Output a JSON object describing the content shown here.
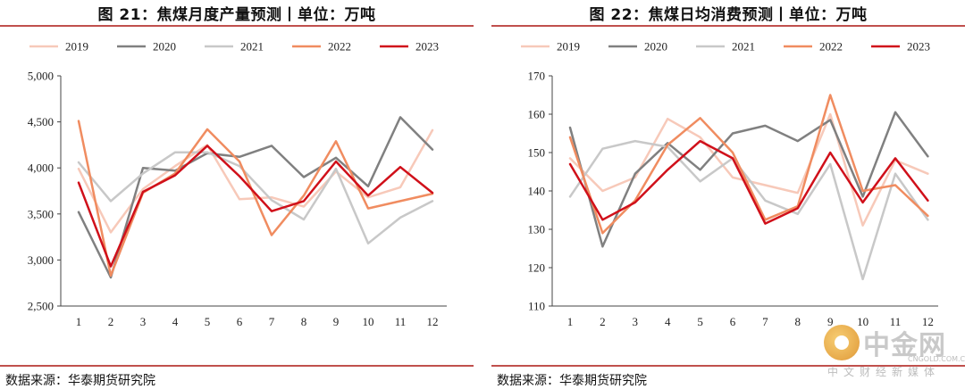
{
  "left": {
    "title": "图 21：焦煤月度产量预测丨单位：万吨",
    "source": "数据来源：华泰期货研究院"
  },
  "right": {
    "title": "图 22：焦煤日均消费预测丨单位：万吨",
    "source": "数据来源：华泰期货研究院"
  },
  "watermark": {
    "main": "中金网",
    "url": "CNGOLD.COM.CN",
    "sub": "中文财经新媒体"
  },
  "chart_data": [
    {
      "type": "line",
      "title": "图 21：焦煤月度产量预测丨单位：万吨",
      "xlabel": "",
      "ylabel": "",
      "x": [
        1,
        2,
        3,
        4,
        5,
        6,
        7,
        8,
        9,
        10,
        11,
        12
      ],
      "ylim": [
        2500,
        5000
      ],
      "yticks": [
        2500,
        3000,
        3500,
        4000,
        4500,
        5000
      ],
      "ytick_labels": [
        "2,500",
        "3,000",
        "3,500",
        "4,000",
        "4,500",
        "5,000"
      ],
      "grid": false,
      "legend_position": "top",
      "series": [
        {
          "name": "2019",
          "color": "#f7c9b9",
          "values": [
            3990,
            3300,
            3770,
            4020,
            4250,
            3660,
            3680,
            3580,
            3960,
            3680,
            3790,
            4410
          ]
        },
        {
          "name": "2020",
          "color": "#808080",
          "values": [
            3520,
            2810,
            4000,
            3970,
            4160,
            4120,
            4240,
            3900,
            4110,
            3800,
            4550,
            4200
          ]
        },
        {
          "name": "2021",
          "color": "#c8c8c8",
          "values": [
            4060,
            3640,
            3940,
            4170,
            4170,
            4020,
            3650,
            3440,
            3990,
            3180,
            3460,
            3640
          ]
        },
        {
          "name": "2022",
          "color": "#f08c60",
          "values": [
            4510,
            2830,
            3730,
            3940,
            4420,
            4070,
            3270,
            3700,
            4290,
            3560,
            3640,
            3720
          ]
        },
        {
          "name": "2023",
          "color": "#d0101a",
          "values": [
            3840,
            2930,
            3740,
            3920,
            4240,
            3910,
            3530,
            3640,
            4070,
            3700,
            4010,
            3730
          ]
        }
      ]
    },
    {
      "type": "line",
      "title": "图 22：焦煤日均消费预测丨单位：万吨",
      "xlabel": "",
      "ylabel": "",
      "x": [
        1,
        2,
        3,
        4,
        5,
        6,
        7,
        8,
        9,
        10,
        11,
        12
      ],
      "ylim": [
        110,
        170
      ],
      "yticks": [
        110,
        120,
        130,
        140,
        150,
        160,
        170
      ],
      "ytick_labels": [
        "110",
        "120",
        "130",
        "140",
        "150",
        "160",
        "170"
      ],
      "grid": false,
      "legend_position": "top",
      "series": [
        {
          "name": "2019",
          "color": "#f7c9b9",
          "values": [
            148.5,
            140.0,
            143.5,
            158.8,
            154.0,
            143.5,
            141.5,
            139.5,
            160.0,
            131.0,
            148.0,
            144.5
          ]
        },
        {
          "name": "2020",
          "color": "#808080",
          "values": [
            156.5,
            125.5,
            144.5,
            152.5,
            145.5,
            155.0,
            157.0,
            153.0,
            158.5,
            138.5,
            160.5,
            149.0
          ]
        },
        {
          "name": "2021",
          "color": "#c8c8c8",
          "values": [
            138.5,
            151.0,
            153.0,
            151.5,
            142.5,
            148.5,
            137.5,
            134.0,
            147.0,
            117.0,
            144.5,
            132.5
          ]
        },
        {
          "name": "2022",
          "color": "#f08c60",
          "values": [
            154.0,
            129.0,
            137.5,
            152.0,
            159.0,
            150.0,
            132.5,
            136.0,
            165.0,
            140.0,
            141.5,
            133.5
          ]
        },
        {
          "name": "2023",
          "color": "#d0101a",
          "values": [
            147.0,
            132.5,
            137.0,
            145.5,
            153.0,
            148.5,
            131.5,
            135.5,
            150.0,
            137.0,
            148.5,
            137.5
          ]
        }
      ]
    }
  ]
}
